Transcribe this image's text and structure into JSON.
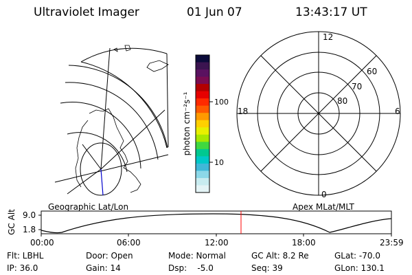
{
  "header": {
    "app_title": "Ultraviolet Imager",
    "date": "01 Jun 07",
    "time": "13:43:17 UT"
  },
  "colorbar": {
    "unit_label": "photon cm⁻²s⁻¹",
    "ticks": [
      "100",
      "10"
    ],
    "colors": [
      "#0b0b3a",
      "#3b1450",
      "#5a1260",
      "#7a0c50",
      "#b30000",
      "#e60000",
      "#ff2a00",
      "#ff5a00",
      "#ff9a00",
      "#ffd000",
      "#e8f000",
      "#a8e800",
      "#40d840",
      "#00c890",
      "#00c8c8",
      "#40b8d8",
      "#8cd8e8",
      "#c8ecf0",
      "#e4f4f6"
    ]
  },
  "left_panel": {
    "label": "Geographic Lat/Lon"
  },
  "right_panel": {
    "label": "Apex MLat/MLT",
    "mlt_labels": {
      "top": "12",
      "bottom": "0",
      "left": "18",
      "right": "6"
    },
    "lat_labels": [
      "60",
      "70",
      "80"
    ]
  },
  "timeline": {
    "y_axis_label": "GC Alt",
    "y_ticks": [
      "9.0",
      "1.8"
    ],
    "x_ticks": [
      "00:00",
      "06:00",
      "12:00",
      "18:00",
      "23:59"
    ],
    "current_marker_color": "#ff0000"
  },
  "status": {
    "filter": "Flt: LBHL",
    "ip": "IP: 36.0",
    "door": "Door: Open",
    "gain": "Gain: 14",
    "mode": "Mode: Normal",
    "dsp": "Dsp:    -5.0",
    "gc_alt": "GC Alt: 8.2 Re",
    "seq": "Seq: 39",
    "glat": "GLat: -70.0",
    "glon": "GLon: 130.1"
  }
}
